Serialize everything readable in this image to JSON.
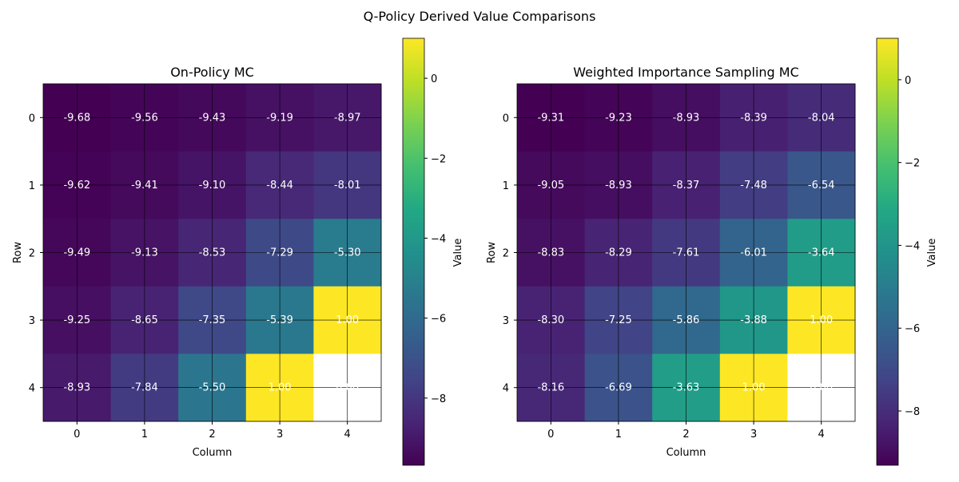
{
  "figure": {
    "title": "Q-Policy Derived Value Comparisons"
  },
  "chart_data": [
    {
      "type": "heatmap",
      "title": "On-Policy MC",
      "xlabel": "Column",
      "ylabel": "Row",
      "colorbar_label": "Value",
      "colormap": "viridis",
      "x_ticks": [
        "0",
        "1",
        "2",
        "3",
        "4"
      ],
      "y_ticks": [
        "0",
        "1",
        "2",
        "3",
        "4"
      ],
      "values": [
        [
          -9.68,
          -9.56,
          -9.43,
          -9.19,
          -8.97
        ],
        [
          -9.62,
          -9.41,
          -9.1,
          -8.44,
          -8.01
        ],
        [
          -9.49,
          -9.13,
          -8.53,
          -7.29,
          -5.3
        ],
        [
          -9.25,
          -8.65,
          -7.35,
          -5.39,
          1.0
        ],
        [
          -8.93,
          -7.84,
          -5.5,
          1.0,
          null
        ]
      ],
      "cell_labels": [
        [
          "-9.68",
          "-9.56",
          "-9.43",
          "-9.19",
          "-8.97"
        ],
        [
          "-9.62",
          "-9.41",
          "-9.10",
          "-8.44",
          "-8.01"
        ],
        [
          "-9.49",
          "-9.13",
          "-8.53",
          "-7.29",
          "-5.30"
        ],
        [
          "-9.25",
          "-8.65",
          "-7.35",
          "-5.39",
          "1.00"
        ],
        [
          "-8.93",
          "-7.84",
          "-5.50",
          "1.00",
          "0.00"
        ]
      ],
      "vmin": -9.68,
      "vmax": 1.0,
      "colorbar_ticks": [
        0,
        -2,
        -4,
        -6,
        -8
      ],
      "colorbar_tick_labels": [
        "0",
        "−2",
        "−4",
        "−6",
        "−8"
      ],
      "grid": true,
      "grid_color": "#000000"
    },
    {
      "type": "heatmap",
      "title": "Weighted Importance Sampling MC",
      "xlabel": "Column",
      "ylabel": "Row",
      "colorbar_label": "Value",
      "colormap": "viridis",
      "x_ticks": [
        "0",
        "1",
        "2",
        "3",
        "4"
      ],
      "y_ticks": [
        "0",
        "1",
        "2",
        "3",
        "4"
      ],
      "values": [
        [
          -9.31,
          -9.23,
          -8.93,
          -8.39,
          -8.04
        ],
        [
          -9.05,
          -8.93,
          -8.37,
          -7.48,
          -6.54
        ],
        [
          -8.83,
          -8.29,
          -7.61,
          -6.01,
          -3.64
        ],
        [
          -8.3,
          -7.25,
          -5.86,
          -3.88,
          1.0
        ],
        [
          -8.16,
          -6.69,
          -3.63,
          1.0,
          null
        ]
      ],
      "cell_labels": [
        [
          "-9.31",
          "-9.23",
          "-8.93",
          "-8.39",
          "-8.04"
        ],
        [
          "-9.05",
          "-8.93",
          "-8.37",
          "-7.48",
          "-6.54"
        ],
        [
          "-8.83",
          "-8.29",
          "-7.61",
          "-6.01",
          "-3.64"
        ],
        [
          "-8.30",
          "-7.25",
          "-5.86",
          "-3.88",
          "1.00"
        ],
        [
          "-8.16",
          "-6.69",
          "-3.63",
          "1.00",
          "0.00"
        ]
      ],
      "vmin": -9.31,
      "vmax": 1.0,
      "colorbar_ticks": [
        0,
        -2,
        -4,
        -6,
        -8
      ],
      "colorbar_tick_labels": [
        "0",
        "−2",
        "−4",
        "−6",
        "−8"
      ],
      "grid": true,
      "grid_color": "#000000"
    }
  ]
}
